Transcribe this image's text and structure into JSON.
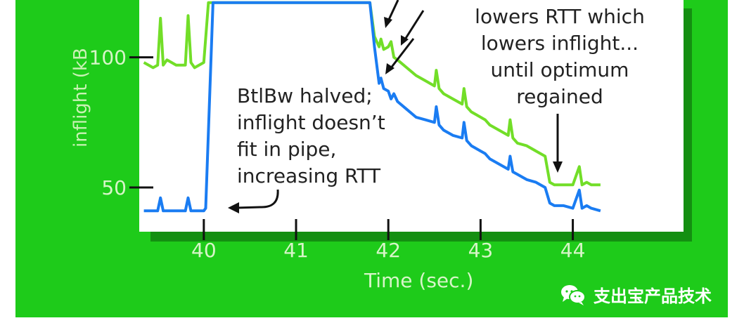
{
  "colors": {
    "background": "#1ecb1a",
    "panel": "#ffffff",
    "blue": "#1a7cf2",
    "green": "#72de28",
    "axis": "#111111",
    "label": "#d7f5c8"
  },
  "chart_data": {
    "type": "line",
    "title": "",
    "xlabel": "Time (sec.)",
    "ylabel": "inflight (kB",
    "x_ticks": [
      "40",
      "41",
      "42",
      "43",
      "44"
    ],
    "y_ticks": [
      "50",
      "100"
    ],
    "xlim": [
      39.3,
      45.2
    ],
    "ylim": [
      33,
      122
    ],
    "series": [
      {
        "name": "",
        "color": "#1a7cf2",
        "x": [
          39.35,
          39.5,
          39.53,
          39.56,
          39.6,
          39.7,
          39.8,
          39.83,
          39.86,
          39.9,
          40.0,
          40.02,
          40.1,
          41.8,
          41.85,
          41.9,
          41.92,
          41.95,
          42.0,
          42.03,
          42.06,
          42.1,
          42.2,
          42.3,
          42.4,
          42.5,
          42.52,
          42.55,
          42.6,
          42.7,
          42.8,
          42.82,
          42.85,
          42.9,
          43.0,
          43.05,
          43.1,
          43.2,
          43.3,
          43.32,
          43.35,
          43.4,
          43.5,
          43.6,
          43.7,
          43.75,
          43.8,
          43.9,
          44.0,
          44.07,
          44.1,
          44.15,
          44.2,
          44.3
        ],
        "y": [
          41,
          41,
          46,
          41,
          41,
          41,
          41,
          46,
          41,
          41,
          41,
          42,
          121,
          121,
          104,
          90,
          92,
          88,
          87,
          84,
          86,
          83,
          80,
          77,
          76,
          75,
          81,
          74,
          72,
          70,
          69,
          75,
          68,
          66,
          64,
          63,
          61,
          59,
          57,
          62,
          56,
          55,
          53,
          52,
          50,
          44,
          43,
          43,
          42,
          49,
          42,
          43,
          42,
          41
        ]
      },
      {
        "name": "",
        "color": "#72de28",
        "x": [
          39.35,
          39.45,
          39.5,
          39.53,
          39.56,
          39.6,
          39.7,
          39.8,
          39.83,
          39.86,
          39.9,
          40.0,
          40.05,
          41.8,
          41.85,
          41.9,
          41.92,
          41.95,
          42.0,
          42.03,
          42.06,
          42.1,
          42.2,
          42.3,
          42.4,
          42.5,
          42.52,
          42.55,
          42.6,
          42.7,
          42.8,
          42.82,
          42.85,
          42.9,
          43.0,
          43.05,
          43.1,
          43.2,
          43.3,
          43.32,
          43.35,
          43.4,
          43.5,
          43.6,
          43.7,
          43.75,
          43.8,
          43.9,
          44.0,
          44.07,
          44.1,
          44.15,
          44.2,
          44.3
        ],
        "y": [
          98,
          96,
          97,
          115,
          97,
          99,
          97,
          97,
          116,
          98,
          96,
          98,
          121,
          121,
          108,
          104,
          107,
          103,
          104,
          106,
          100,
          99,
          96,
          93,
          91,
          89,
          95,
          88,
          86,
          84,
          82,
          88,
          81,
          79,
          77,
          76,
          74,
          72,
          70,
          76,
          69,
          67,
          66,
          64,
          62,
          52,
          51,
          51,
          51,
          58,
          51,
          52,
          51,
          51
        ]
      }
    ]
  },
  "annotations": {
    "left_lines": [
      "BtlBw halved;",
      "inflight doesn’t",
      "fit in pipe,",
      "increasing RTT"
    ],
    "right_lines": [
      "lowers RTT which",
      "lowers inflight...",
      "until optimum",
      "regained"
    ]
  },
  "watermark": {
    "icon": "chat-bubbles-icon",
    "text": "支出宝产品技术"
  }
}
